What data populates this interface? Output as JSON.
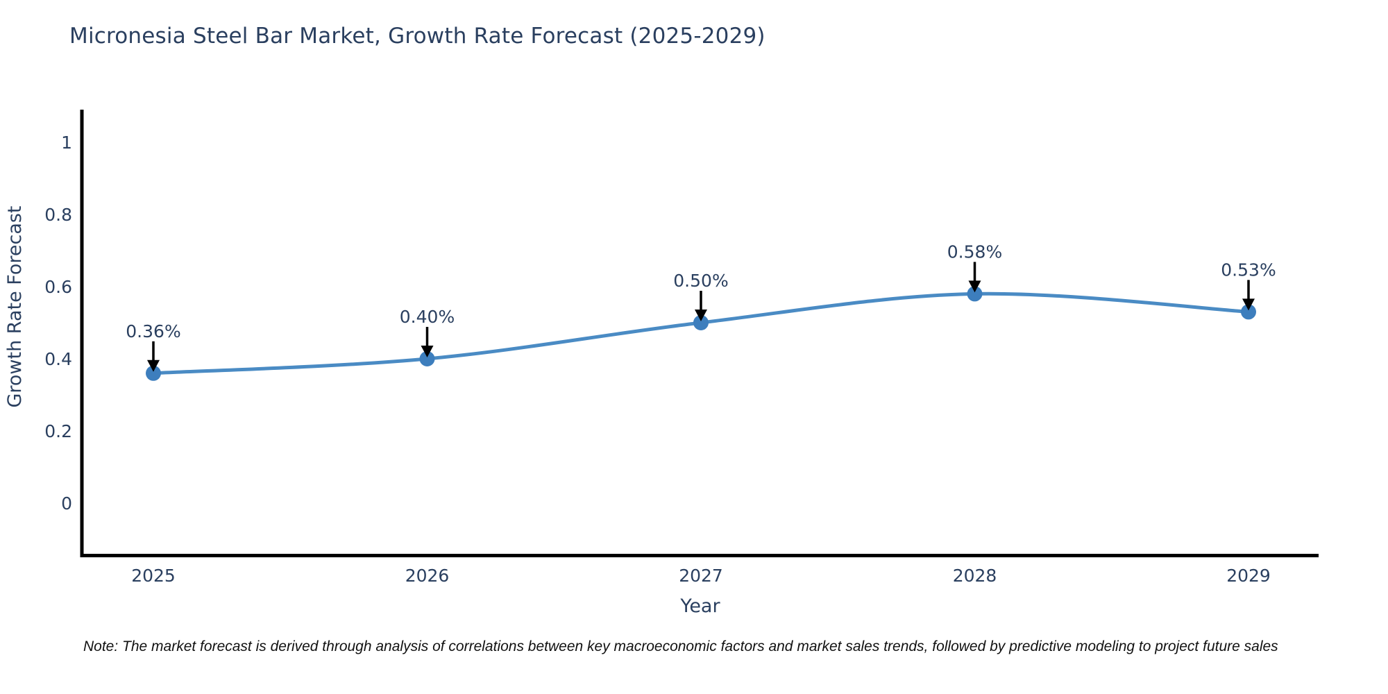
{
  "header": {
    "title": "Micronesia Steel Bar Market, Growth Rate Forecast (2025-2029)"
  },
  "note": "Note: The market forecast is derived through analysis of correlations between key macroeconomic factors and market sales trends, followed by predictive modeling to project future sales",
  "chart_data": {
    "type": "line",
    "title": "Micronesia Steel Bar Market, Growth Rate Forecast (2025-2029)",
    "xlabel": "Year",
    "ylabel": "Growth Rate Forecast",
    "x": [
      2025,
      2026,
      2027,
      2028,
      2029
    ],
    "y": [
      0.36,
      0.4,
      0.5,
      0.58,
      0.53
    ],
    "point_labels": [
      "0.36%",
      "0.40%",
      "0.50%",
      "0.58%",
      "0.53%"
    ],
    "xtick_labels": [
      "2025",
      "2026",
      "2027",
      "2028",
      "2029"
    ],
    "yticks": [
      0,
      0.2,
      0.4,
      0.6,
      0.8,
      1
    ],
    "ytick_labels": [
      "0",
      "0.2",
      "0.4",
      "0.6",
      "0.8",
      "1"
    ],
    "ylim": [
      -0.16,
      1.09
    ],
    "grid": false,
    "legend": "none",
    "line_shape": "spline",
    "annotation_arrows": true,
    "colors": {
      "line": "#4a8bc4",
      "marker": "#3d7ebd",
      "arrow": "#000000",
      "axis": "#000000",
      "text": "#2a3f5f",
      "note_text": "#111111",
      "background": "#ffffff"
    }
  }
}
